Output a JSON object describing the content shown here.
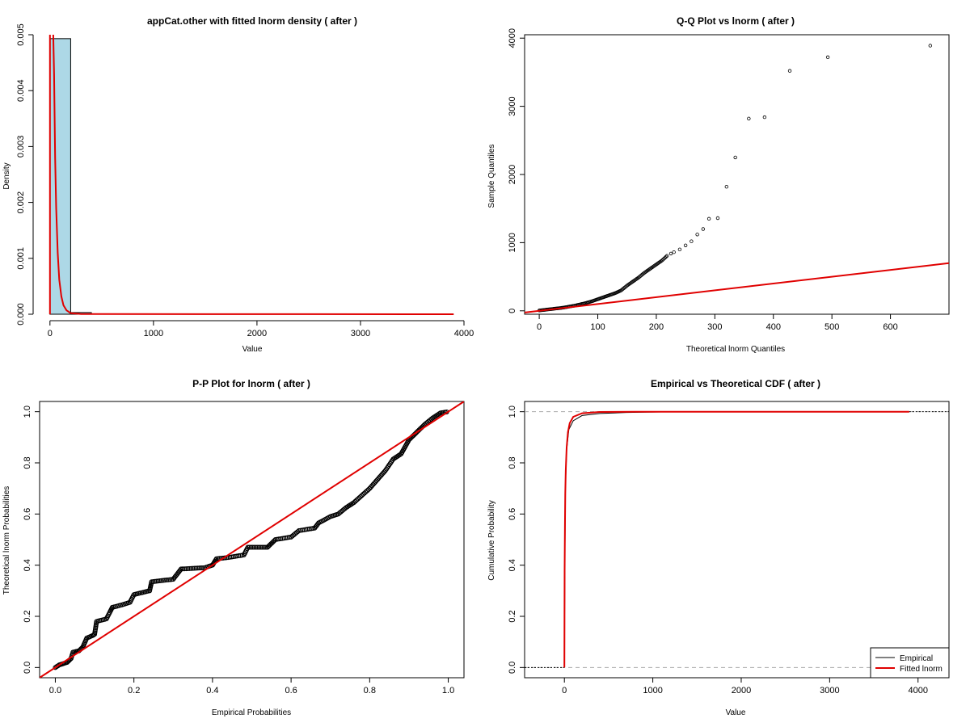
{
  "chart_data": [
    {
      "type": "bar",
      "title": "appCat.other with fitted lnorm density ( after )",
      "xlabel": "Value",
      "ylabel": "Density",
      "xlim": [
        -100,
        4000
      ],
      "ylim": [
        0,
        0.005
      ],
      "xticks": [
        "0",
        "1000",
        "2000",
        "3000",
        "4000"
      ],
      "yticks": [
        "0.000",
        "0.001",
        "0.002",
        "0.003",
        "0.004",
        "0.005"
      ],
      "histogram": [
        {
          "x0": 0,
          "x1": 200,
          "density": 0.00493
        },
        {
          "x0": 200,
          "x1": 400,
          "density": 3e-05
        },
        {
          "x0": 400,
          "x1": 3900,
          "density": 0.0
        }
      ],
      "fitted_density": {
        "name": "lnorm",
        "points": [
          [
            2,
            0.0052
          ],
          [
            30,
            0.0052
          ],
          [
            40,
            0.0043
          ],
          [
            50,
            0.0028
          ],
          [
            60,
            0.0019
          ],
          [
            75,
            0.0011
          ],
          [
            90,
            0.00062
          ],
          [
            110,
            0.00032
          ],
          [
            130,
            0.00016
          ],
          [
            160,
            7e-05
          ],
          [
            200,
            2e-05
          ],
          [
            300,
            3e-06
          ],
          [
            3900,
            0.0
          ]
        ]
      },
      "colors": {
        "bar_fill": "#add8e6",
        "curve": "#e00000"
      }
    },
    {
      "type": "scatter",
      "title": "Q-Q Plot vs lnorm ( after )",
      "xlabel": "Theoretical lnorm Quantiles",
      "ylabel": "Sample Quantiles",
      "xlim": [
        -25,
        700
      ],
      "ylim": [
        -50,
        4050
      ],
      "xticks": [
        "0",
        "100",
        "200",
        "300",
        "400",
        "500",
        "600"
      ],
      "yticks": [
        "0",
        "1000",
        "2000",
        "3000",
        "4000"
      ],
      "reference_line": {
        "slope": 1.0,
        "intercept": 0
      },
      "points_dense": [
        [
          0,
          5
        ],
        [
          10,
          15
        ],
        [
          20,
          25
        ],
        [
          30,
          35
        ],
        [
          40,
          45
        ],
        [
          50,
          60
        ],
        [
          60,
          75
        ],
        [
          70,
          95
        ],
        [
          80,
          115
        ],
        [
          90,
          140
        ],
        [
          100,
          170
        ],
        [
          110,
          200
        ],
        [
          120,
          230
        ],
        [
          130,
          260
        ],
        [
          140,
          300
        ],
        [
          150,
          370
        ],
        [
          160,
          430
        ],
        [
          170,
          490
        ],
        [
          180,
          560
        ],
        [
          190,
          620
        ],
        [
          200,
          680
        ],
        [
          210,
          740
        ],
        [
          220,
          820
        ]
      ],
      "points_sparse": [
        [
          225,
          840
        ],
        [
          230,
          860
        ],
        [
          240,
          900
        ],
        [
          250,
          960
        ],
        [
          260,
          1020
        ],
        [
          270,
          1120
        ],
        [
          280,
          1200
        ],
        [
          290,
          1350
        ],
        [
          305,
          1360
        ],
        [
          320,
          1820
        ],
        [
          335,
          2250
        ],
        [
          358,
          2820
        ],
        [
          385,
          2840
        ],
        [
          428,
          3520
        ],
        [
          493,
          3720
        ],
        [
          668,
          3890
        ]
      ],
      "colors": {
        "points": "#000000",
        "line": "#e00000"
      }
    },
    {
      "type": "scatter",
      "title": "P-P Plot for lnorm ( after )",
      "xlabel": "Empirical Probabilities",
      "ylabel": "Theoretical lnorm Probabilities",
      "xlim": [
        -0.04,
        1.04
      ],
      "ylim": [
        -0.04,
        1.04
      ],
      "xticks": [
        "0.0",
        "0.2",
        "0.4",
        "0.6",
        "0.8",
        "1.0"
      ],
      "yticks": [
        "0.0",
        "0.2",
        "0.4",
        "0.6",
        "0.8",
        "1.0"
      ],
      "reference_line": {
        "slope": 1.0,
        "intercept": 0
      },
      "points": [
        [
          0.0,
          0.0
        ],
        [
          0.01,
          0.01
        ],
        [
          0.02,
          0.015
        ],
        [
          0.03,
          0.02
        ],
        [
          0.04,
          0.035
        ],
        [
          0.045,
          0.06
        ],
        [
          0.06,
          0.065
        ],
        [
          0.07,
          0.08
        ],
        [
          0.08,
          0.115
        ],
        [
          0.095,
          0.125
        ],
        [
          0.1,
          0.13
        ],
        [
          0.105,
          0.18
        ],
        [
          0.13,
          0.19
        ],
        [
          0.14,
          0.22
        ],
        [
          0.145,
          0.235
        ],
        [
          0.17,
          0.245
        ],
        [
          0.19,
          0.255
        ],
        [
          0.2,
          0.285
        ],
        [
          0.24,
          0.3
        ],
        [
          0.245,
          0.335
        ],
        [
          0.3,
          0.345
        ],
        [
          0.32,
          0.385
        ],
        [
          0.38,
          0.39
        ],
        [
          0.4,
          0.4
        ],
        [
          0.41,
          0.425
        ],
        [
          0.44,
          0.43
        ],
        [
          0.48,
          0.44
        ],
        [
          0.49,
          0.47
        ],
        [
          0.54,
          0.47
        ],
        [
          0.56,
          0.5
        ],
        [
          0.6,
          0.51
        ],
        [
          0.62,
          0.535
        ],
        [
          0.66,
          0.545
        ],
        [
          0.67,
          0.565
        ],
        [
          0.7,
          0.59
        ],
        [
          0.72,
          0.6
        ],
        [
          0.74,
          0.625
        ],
        [
          0.76,
          0.645
        ],
        [
          0.8,
          0.7
        ],
        [
          0.84,
          0.77
        ],
        [
          0.86,
          0.815
        ],
        [
          0.88,
          0.835
        ],
        [
          0.9,
          0.89
        ],
        [
          0.92,
          0.92
        ],
        [
          0.94,
          0.95
        ],
        [
          0.96,
          0.975
        ],
        [
          0.98,
          0.995
        ],
        [
          1.0,
          1.0
        ]
      ],
      "colors": {
        "points": "#000000",
        "line": "#e00000"
      }
    },
    {
      "type": "line",
      "title": "Empirical vs Theoretical CDF ( after )",
      "xlabel": "Value",
      "ylabel": "Cumulative Probability",
      "xlim": [
        -450,
        4350
      ],
      "ylim": [
        -0.04,
        1.04
      ],
      "xticks": [
        "0",
        "1000",
        "2000",
        "3000",
        "4000"
      ],
      "yticks": [
        "0.0",
        "0.2",
        "0.4",
        "0.6",
        "0.8",
        "1.0"
      ],
      "legend_position": "bottom-right",
      "series": [
        {
          "name": "Empirical",
          "points": [
            [
              0,
              0.0
            ],
            [
              5,
              0.4
            ],
            [
              12,
              0.7
            ],
            [
              25,
              0.85
            ],
            [
              50,
              0.93
            ],
            [
              100,
              0.965
            ],
            [
              200,
              0.985
            ],
            [
              400,
              0.993
            ],
            [
              700,
              0.997
            ],
            [
              1250,
              1.0
            ],
            [
              3900,
              1.0
            ]
          ]
        },
        {
          "name": "Fitted lnorm",
          "points": [
            [
              0,
              0.0
            ],
            [
              3,
              0.38
            ],
            [
              6,
              0.55
            ],
            [
              10,
              0.68
            ],
            [
              15,
              0.77
            ],
            [
              25,
              0.86
            ],
            [
              40,
              0.92
            ],
            [
              60,
              0.955
            ],
            [
              100,
              0.98
            ],
            [
              200,
              0.994
            ],
            [
              400,
              0.999
            ],
            [
              800,
              1.0
            ],
            [
              3900,
              1.0
            ]
          ]
        }
      ],
      "reference_lines": [
        0.0,
        1.0
      ],
      "colors": {
        "Empirical": "#000000",
        "Fitted lnorm": "#e00000",
        "reference": "#aaaaaa"
      }
    }
  ]
}
